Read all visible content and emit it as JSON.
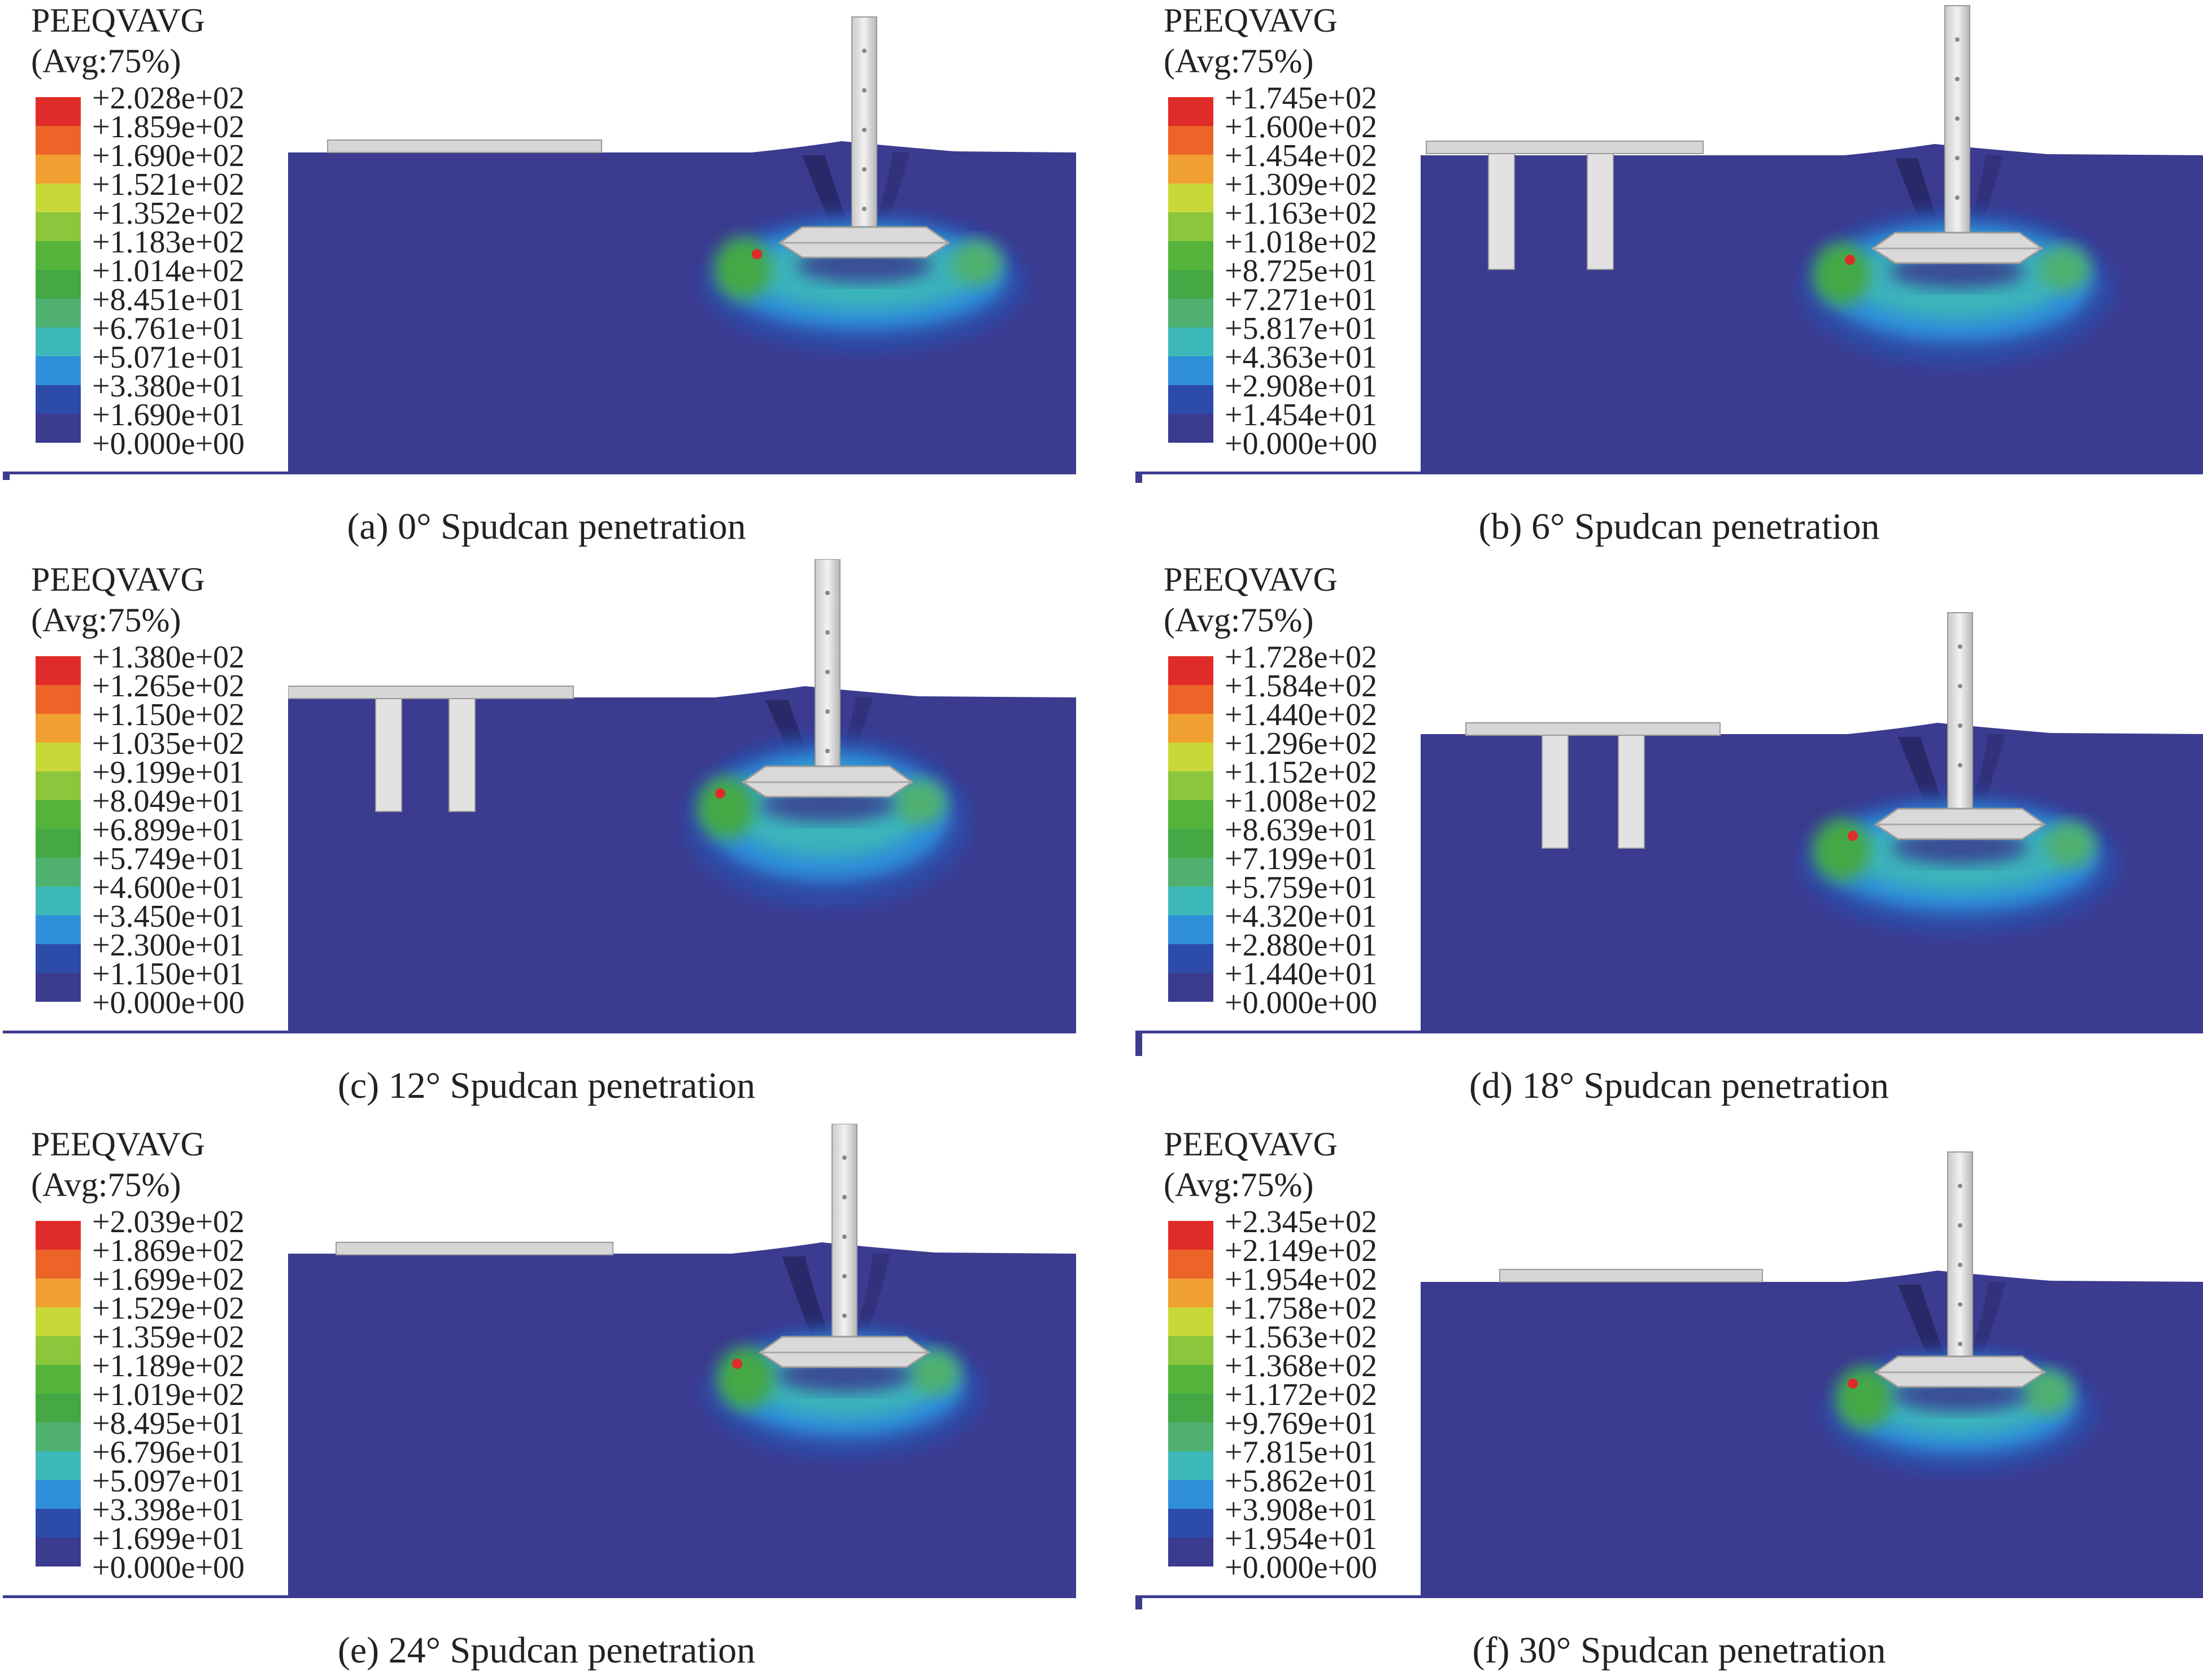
{
  "legend_title": "PEEQVAVG",
  "legend_avg": "(Avg:75%)",
  "colors": [
    "#3b3b8f",
    "#2d4ba8",
    "#2f8fd8",
    "#3db8b8",
    "#4fb070",
    "#44a844",
    "#54b43c",
    "#8cc63c",
    "#c8d838",
    "#f0a030",
    "#ec6428",
    "#e02c28"
  ],
  "panels": [
    {
      "id": "a",
      "caption": "(a) 0° Spudcan penetration",
      "has_legs": false,
      "ticks": [
        "+2.028e+02",
        "+1.859e+02",
        "+1.690e+02",
        "+1.521e+02",
        "+1.352e+02",
        "+1.183e+02",
        "+1.014e+02",
        "+8.451e+01",
        "+6.761e+01",
        "+5.071e+01",
        "+3.380e+01",
        "+1.690e+01",
        "+0.000e+00"
      ]
    },
    {
      "id": "b",
      "caption": "(b) 6° Spudcan penetration",
      "has_legs": true,
      "ticks": [
        "+1.745e+02",
        "+1.600e+02",
        "+1.454e+02",
        "+1.309e+02",
        "+1.163e+02",
        "+1.018e+02",
        "+8.725e+01",
        "+7.271e+01",
        "+5.817e+01",
        "+4.363e+01",
        "+2.908e+01",
        "+1.454e+01",
        "+0.000e+00"
      ]
    },
    {
      "id": "c",
      "caption": "(c) 12° Spudcan penetration",
      "has_legs": true,
      "ticks": [
        "+1.380e+02",
        "+1.265e+02",
        "+1.150e+02",
        "+1.035e+02",
        "+9.199e+01",
        "+8.049e+01",
        "+6.899e+01",
        "+5.749e+01",
        "+4.600e+01",
        "+3.450e+01",
        "+2.300e+01",
        "+1.150e+01",
        "+0.000e+00"
      ]
    },
    {
      "id": "d",
      "caption": "(d) 18° Spudcan penetration",
      "has_legs": true,
      "ticks": [
        "+1.728e+02",
        "+1.584e+02",
        "+1.440e+02",
        "+1.296e+02",
        "+1.152e+02",
        "+1.008e+02",
        "+8.639e+01",
        "+7.199e+01",
        "+5.759e+01",
        "+4.320e+01",
        "+2.880e+01",
        "+1.440e+01",
        "+0.000e+00"
      ]
    },
    {
      "id": "e",
      "caption": "(e) 24° Spudcan penetration",
      "has_legs": false,
      "ticks": [
        "+2.039e+02",
        "+1.869e+02",
        "+1.699e+02",
        "+1.529e+02",
        "+1.359e+02",
        "+1.189e+02",
        "+1.019e+02",
        "+8.495e+01",
        "+6.796e+01",
        "+5.097e+01",
        "+3.398e+01",
        "+1.699e+01",
        "+0.000e+00"
      ]
    },
    {
      "id": "f",
      "caption": "(f) 30° Spudcan penetration",
      "has_legs": false,
      "ticks": [
        "+2.345e+02",
        "+2.149e+02",
        "+1.954e+02",
        "+1.758e+02",
        "+1.563e+02",
        "+1.368e+02",
        "+1.172e+02",
        "+9.769e+01",
        "+7.815e+01",
        "+5.862e+01",
        "+3.908e+01",
        "+1.954e+01",
        "+0.000e+00"
      ]
    }
  ]
}
